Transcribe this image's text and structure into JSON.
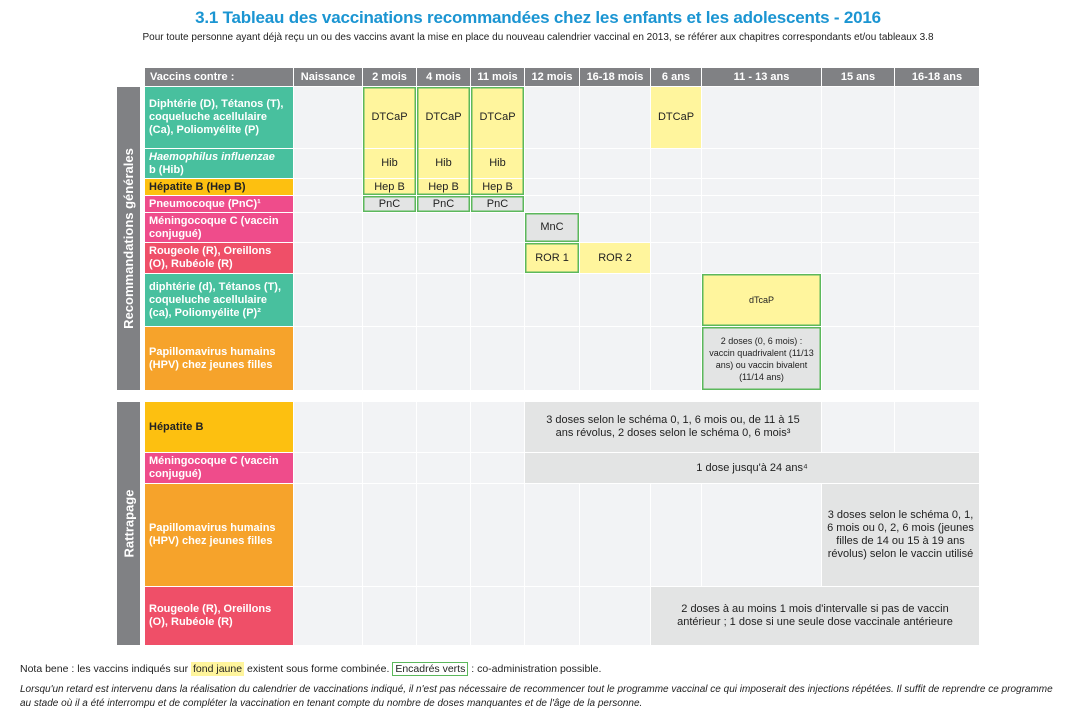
{
  "title": "3.1  Tableau des vaccinations recommandées chez les enfants et les adolescents - 2016",
  "subtitle": "Pour toute personne ayant déjà reçu un ou des vaccins avant la mise en place du nouveau calendrier vaccinal en 2013, se référer aux chapitres correspondants et/ou tableaux 3.8",
  "headers": [
    "Vaccins contre :",
    "Naissance",
    "2 mois",
    "4 mois",
    "11 mois",
    "12 mois",
    "16-18 mois",
    "6 ans",
    "11 - 13 ans",
    "15 ans",
    "16-18 ans"
  ],
  "sections": {
    "general": "Recommandations générales",
    "catchup": "Rattrapage"
  },
  "rows": {
    "dtcap": "Diphtérie (D), Tétanos (T), coqueluche acellulaire (Ca), Poliomyélite (P)",
    "hib_italic": "Haemophilus influenzae",
    "hib_rest": "b (Hib)",
    "hepb": "Hépatite B (Hep B)",
    "pnc": "Pneumocoque (PnC)¹",
    "mnc": "Méningocoque C (vaccin conjugué)",
    "ror": "Rougeole (R), Oreillons (O), Rubéole (R)",
    "dtcap2": "diphtérie (d), Tétanos (T), coqueluche acellulaire (ca), Poliomyélite (P)²",
    "hpv": "Papillomavirus humains (HPV) chez jeunes filles",
    "c_hepb": "Hépatite B",
    "c_mnc": "Méningocoque C (vaccin conjugué)",
    "c_hpv": "Papillomavirus humains (HPV) chez jeunes filles",
    "c_ror": "Rougeole (R), Oreillons (O), Rubéole (R)"
  },
  "cells": {
    "dtcap": "DTCaP",
    "hib": "Hib",
    "hepb": "Hep B",
    "pnc": "PnC",
    "mnc": "MnC",
    "ror1": "ROR 1",
    "ror2": "ROR 2",
    "dtcap_low": "dTcaP",
    "hpv": "2 doses (0, 6 mois) : vaccin quadrivalent (11/13 ans) ou vaccin bivalent (11/14 ans)",
    "c_hepb": "3 doses selon le schéma 0, 1, 6 mois ou, de 11 à 15 ans révolus, 2 doses selon le schéma 0, 6 mois³",
    "c_mnc": "1 dose jusqu'à 24 ans⁴",
    "c_hpv": "3 doses selon le schéma 0, 1, 6 mois ou 0, 2, 6 mois (jeunes filles de 14 ou 15 à 19 ans révolus) selon le vaccin utilisé",
    "c_ror": "2 doses à au moins 1 mois d'intervalle si pas de vaccin antérieur ; 1 dose si une seule dose vaccinale antérieure"
  },
  "notes": {
    "nb_start": "Nota bene : les vaccins indiqués sur ",
    "yellow": "fond jaune",
    "nb_mid": " existent sous forme combinée. ",
    "green": "Encadrés verts",
    "nb_end": " : co-administration possible.",
    "paragraph": "Lorsqu'un retard est intervenu dans la réalisation du calendrier de vaccinations indiqué, il n'est pas nécessaire de recommencer tout le programme vaccinal ce qui imposerait des injections répétées. Il suffit de reprendre ce programme au stade où il a été interrompu et de compléter la vaccination en tenant compte du nombre de doses manquantes et de l'âge de la personne."
  },
  "colors": {
    "title": "#1b95d2",
    "header": "#808184",
    "combined": "#fff59d",
    "coadmin_border": "#5cb85c",
    "teal": "#48c09e",
    "amber": "#fdc010",
    "pink": "#ef4c8b",
    "red": "#ef4f68",
    "orange": "#f6a32b"
  }
}
